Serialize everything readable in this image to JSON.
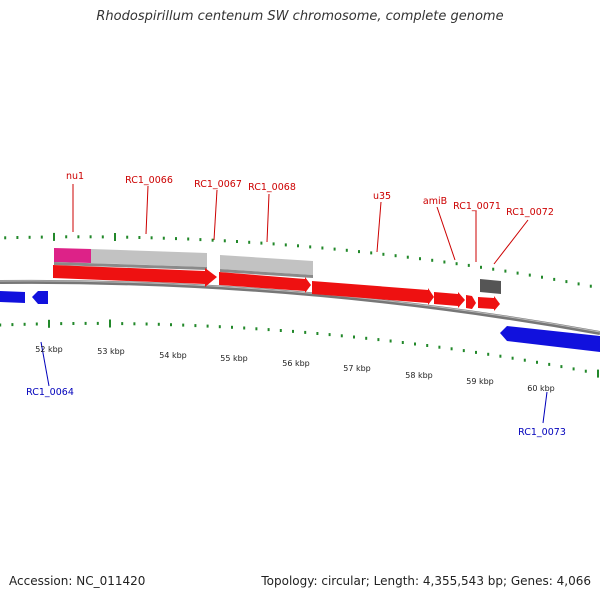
{
  "header": {
    "title": "Rhodospirillum centenum SW chromosome, complete genome"
  },
  "footer": {
    "accession": "Accession: NC_011420",
    "summary": "Topology: circular; Length: 4,355,543 bp; Genes: 4,066"
  },
  "colors": {
    "forward_gene": "#ee1111",
    "reverse_gene": "#1111dd",
    "rna_gene": "#555555",
    "feature_grey": "#c2c2c2",
    "feature_pink": "#dd2288",
    "tick": "#22882a",
    "backbone": "#777777",
    "label_forward": "#cc0000",
    "label_reverse": "#0000bb"
  },
  "scale_labels": [
    "52 kbp",
    "53 kbp",
    "54 kbp",
    "55 kbp",
    "56 kbp",
    "57 kbp",
    "58 kbp",
    "59 kbp",
    "60 kbp"
  ],
  "gene_labels_top": [
    "nu1",
    "RC1_0066",
    "RC1_0067",
    "RC1_0068",
    "u35",
    "amiB",
    "RC1_0071",
    "RC1_0072"
  ],
  "gene_labels_bottom": [
    "RC1_0064",
    "RC1_0073"
  ]
}
